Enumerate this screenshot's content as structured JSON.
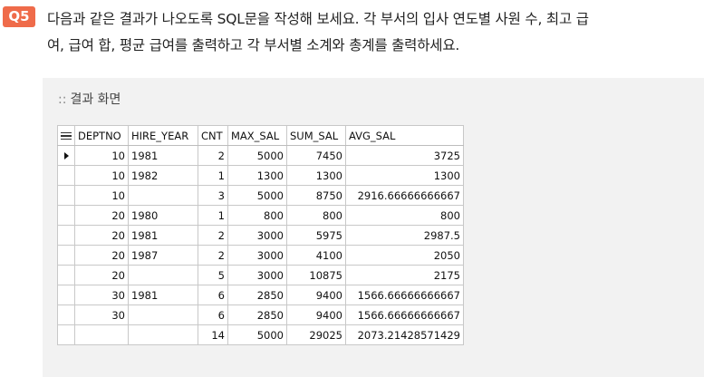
{
  "question": {
    "badge": "Q5",
    "line1": "다음과 같은 결과가 나오도록 SQL문을 작성해 보세요. 각 부서의 입사 연도별 사원 수, 최고 급",
    "line2": "여, 급여 합, 평균 급여를 출력하고 각 부서별 소계와 총계를 출력하세요."
  },
  "result": {
    "marker": "::",
    "title": "결과 화면",
    "columns": [
      "DEPTNO",
      "HIRE_YEAR",
      "CNT",
      "MAX_SAL",
      "SUM_SAL",
      "AVG_SAL"
    ],
    "rows": [
      {
        "deptno": "10",
        "hire_year": "1981",
        "cnt": "2",
        "max_sal": "5000",
        "sum_sal": "7450",
        "avg_sal": "3725"
      },
      {
        "deptno": "10",
        "hire_year": "1982",
        "cnt": "1",
        "max_sal": "1300",
        "sum_sal": "1300",
        "avg_sal": "1300"
      },
      {
        "deptno": "10",
        "hire_year": "",
        "cnt": "3",
        "max_sal": "5000",
        "sum_sal": "8750",
        "avg_sal": "2916.66666666667"
      },
      {
        "deptno": "20",
        "hire_year": "1980",
        "cnt": "1",
        "max_sal": "800",
        "sum_sal": "800",
        "avg_sal": "800"
      },
      {
        "deptno": "20",
        "hire_year": "1981",
        "cnt": "2",
        "max_sal": "3000",
        "sum_sal": "5975",
        "avg_sal": "2987.5"
      },
      {
        "deptno": "20",
        "hire_year": "1987",
        "cnt": "2",
        "max_sal": "3000",
        "sum_sal": "4100",
        "avg_sal": "2050"
      },
      {
        "deptno": "20",
        "hire_year": "",
        "cnt": "5",
        "max_sal": "3000",
        "sum_sal": "10875",
        "avg_sal": "2175"
      },
      {
        "deptno": "30",
        "hire_year": "1981",
        "cnt": "6",
        "max_sal": "2850",
        "sum_sal": "9400",
        "avg_sal": "1566.66666666667"
      },
      {
        "deptno": "30",
        "hire_year": "",
        "cnt": "6",
        "max_sal": "2850",
        "sum_sal": "9400",
        "avg_sal": "1566.66666666667"
      },
      {
        "deptno": "",
        "hire_year": "",
        "cnt": "14",
        "max_sal": "5000",
        "sum_sal": "29025",
        "avg_sal": "2073.21428571429"
      }
    ],
    "current_row_index": 0
  },
  "colors": {
    "badge": "#ef6b4a",
    "box_background": "#f2f2f2",
    "grid_border": "#c8c8c8"
  }
}
